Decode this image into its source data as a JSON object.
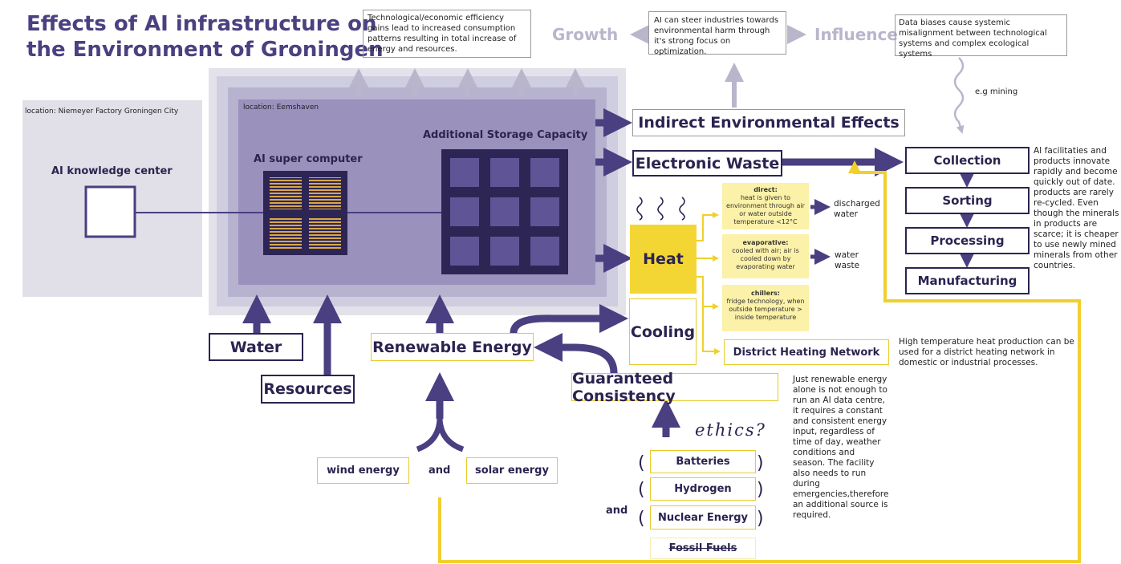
{
  "title_lines": [
    "Effects of AI infrastructure on",
    "the Environment of Groningen"
  ],
  "top": {
    "efficiency_note": "Technological/economic efficiency gains lead to increased consumption patterns resulting in total increase of energy and resources.",
    "growth": "Growth",
    "influence_note": "AI can steer industries towards environmental harm through it's strong focus on optimization.",
    "influence": "Influence",
    "bias_note": "Data biases cause systemic misalignment between technological systems and complex ecological systems",
    "mining": "e.g mining"
  },
  "city": {
    "location": "location: Niemeyer Factory Groningen City",
    "label": "AI knowledge center"
  },
  "eemshaven": {
    "location": "location: Eemshaven",
    "supercomputer": "AI super computer",
    "storage": "Additional Storage Capacity"
  },
  "outputs": {
    "indirect": "Indirect Environmental Effects",
    "ewaste": "Electronic Waste",
    "heat": "Heat",
    "cooling": "Cooling"
  },
  "recycling": {
    "steps": [
      "Collection",
      "Sorting",
      "Processing",
      "Manufacturing"
    ],
    "note": "AI facilitaties and products innovate rapidly and become quickly out of date. products are rarely re-cycled. Even though the minerals in products are scarce; it is cheaper to use newly mined minerals from other countries."
  },
  "heat_options": [
    {
      "title": "direct:",
      "text": "heat is given to environment through air or water outside temperature <12°C",
      "result": "discharged water"
    },
    {
      "title": "evaporative:",
      "text": "cooled with air; air is cooled down by evaporating water",
      "result": "water waste"
    },
    {
      "title": "chillers:",
      "text": "fridge technology, when outside temperature > inside temperature"
    }
  ],
  "district": {
    "label": "District Heating Network",
    "note": "High temperature heat production can be used for a district heating network in domestic or industrial processes."
  },
  "inputs": {
    "water": "Water",
    "resources": "Resources",
    "renewable": "Renewable Energy",
    "wind": "wind energy",
    "and": "and",
    "solar": "solar energy"
  },
  "consistency": {
    "label": "Guaranteed Consistency",
    "note": "Just renewable energy alone is not enough to run an AI data centre, it requires a constant and consistent energy input, regardless of time of day, weather conditions and season. The facility also needs to run during emergencies,therefore an additional source is required.",
    "ethics": "ethics?",
    "sources": [
      "Batteries",
      "Hydrogen",
      "Nuclear Energy",
      "Fossil Fuels"
    ],
    "and": "and"
  }
}
